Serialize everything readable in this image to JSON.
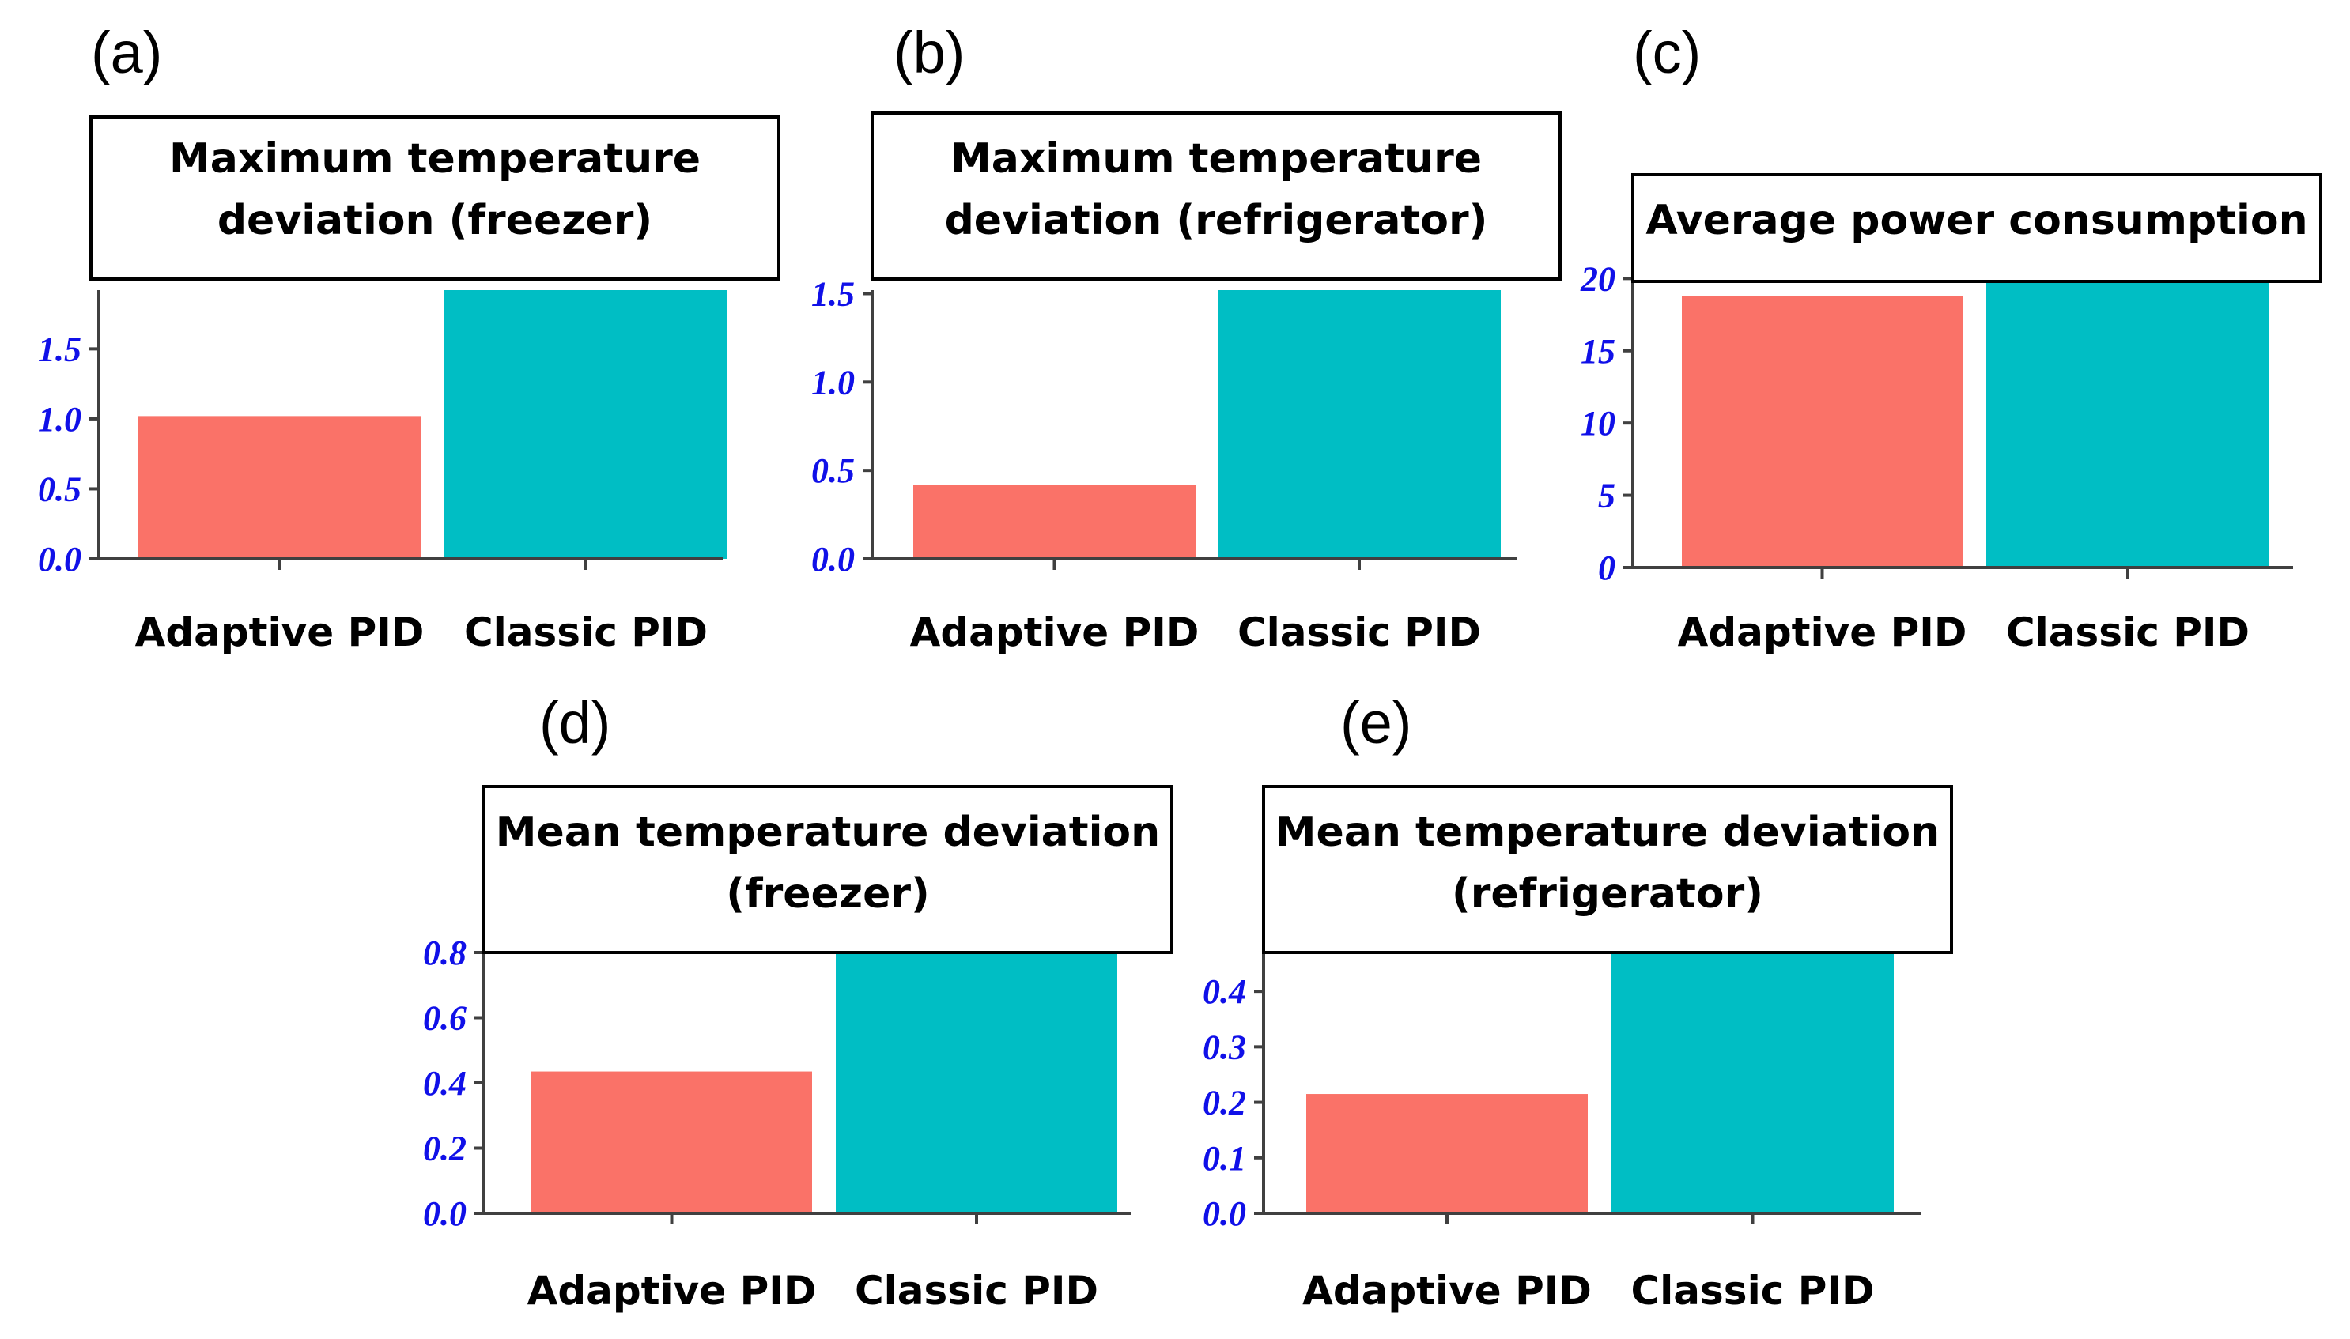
{
  "figure": {
    "background": "#ffffff",
    "axis_color": "#404040",
    "tick_label_color": "#1010e8",
    "series_colors": [
      "#fa7268",
      "#00bec4"
    ]
  },
  "chart_data": [
    {
      "id": "a",
      "panel_label": "(a)",
      "type": "bar",
      "title_lines": [
        "Maximum temperature",
        "deviation (freezer)"
      ],
      "categories": [
        "Adaptive PID",
        "Classic PID"
      ],
      "values": [
        1.02,
        1.92
      ],
      "ylim": [
        0,
        1.92
      ],
      "yticks": [
        0.0,
        0.5,
        1.0,
        1.5
      ],
      "ytick_labels": [
        "0.0",
        "0.5",
        "1.0",
        "1.5"
      ],
      "colors": [
        "#fa7268",
        "#00bec4"
      ]
    },
    {
      "id": "b",
      "panel_label": "(b)",
      "type": "bar",
      "title_lines": [
        "Maximum temperature",
        "deviation (refrigerator)"
      ],
      "categories": [
        "Adaptive PID",
        "Classic PID"
      ],
      "values": [
        0.42,
        1.52
      ],
      "ylim": [
        0,
        1.52
      ],
      "yticks": [
        0.0,
        0.5,
        1.0,
        1.5
      ],
      "ytick_labels": [
        "0.0",
        "0.5",
        "1.0",
        "1.5"
      ],
      "colors": [
        "#fa7268",
        "#00bec4"
      ]
    },
    {
      "id": "c",
      "panel_label": "(c)",
      "type": "bar",
      "title_lines": [
        "Average power consumption"
      ],
      "categories": [
        "Adaptive PID",
        "Classic PID"
      ],
      "values": [
        18.8,
        19.8
      ],
      "ylim": [
        0,
        19.8
      ],
      "yticks": [
        0,
        5,
        10,
        15,
        20
      ],
      "ytick_labels": [
        "0",
        "5",
        "10",
        "15",
        "20"
      ],
      "colors": [
        "#fa7268",
        "#00bec4"
      ]
    },
    {
      "id": "d",
      "panel_label": "(d)",
      "type": "bar",
      "title_lines": [
        "Mean temperature deviation",
        "(freezer)"
      ],
      "categories": [
        "Adaptive PID",
        "Classic PID"
      ],
      "values": [
        0.435,
        0.8
      ],
      "ylim": [
        0,
        0.8
      ],
      "yticks": [
        0.0,
        0.2,
        0.4,
        0.6,
        0.8
      ],
      "ytick_labels": [
        "0.0",
        "0.2",
        "0.4",
        "0.6",
        "0.8"
      ],
      "colors": [
        "#fa7268",
        "#00bec4"
      ]
    },
    {
      "id": "e",
      "panel_label": "(e)",
      "type": "bar",
      "title_lines": [
        "Mean temperature deviation",
        "(refrigerator)"
      ],
      "categories": [
        "Adaptive PID",
        "Classic PID"
      ],
      "values": [
        0.215,
        0.47
      ],
      "ylim": [
        0,
        0.47
      ],
      "yticks": [
        0.0,
        0.1,
        0.2,
        0.3,
        0.4
      ],
      "ytick_labels": [
        "0.0",
        "0.1",
        "0.2",
        "0.3",
        "0.4"
      ],
      "colors": [
        "#fa7268",
        "#00bec4"
      ]
    }
  ]
}
